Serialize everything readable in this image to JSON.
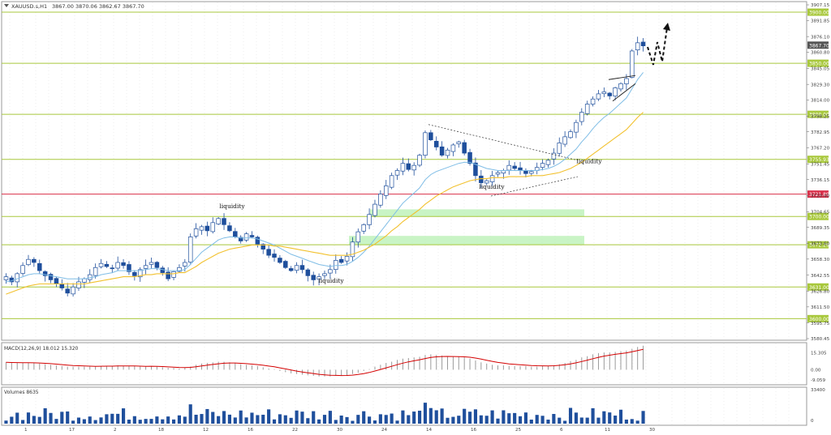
{
  "header": {
    "symbol": "XAUUSD.s,H1",
    "ohlc": "3867.00 3870.06 3862.67 3867.70"
  },
  "chart_data": {
    "type": "candlestick",
    "symbol": "XAUUSD.s",
    "timeframe": "H1",
    "last_price": 3867.7,
    "ylim": [
      3580.45,
      3907.15
    ],
    "price_axis_ticks": [
      3907.15,
      3891.85,
      3876.1,
      3860.8,
      3845.05,
      3829.3,
      3814.0,
      3798.25,
      3782.95,
      3767.2,
      3751.45,
      3736.15,
      3720.4,
      3704.65,
      3689.35,
      3673.6,
      3658.3,
      3642.55,
      3626.8,
      3611.5,
      3595.75,
      3580.45
    ],
    "horizontal_levels": [
      {
        "price": 3900.0,
        "label": "3900.00",
        "color": "#a8c83c"
      },
      {
        "price": 3850.0,
        "label": "3850.00",
        "color": "#a8c83c"
      },
      {
        "price": 3800.0,
        "label": "3800.00",
        "color": "#a8c83c"
      },
      {
        "price": 3755.93,
        "label": "3755.93",
        "color": "#a8c83c"
      },
      {
        "price": 3721.89,
        "label": "3721.89",
        "color": "#d9304a"
      },
      {
        "price": 3700.0,
        "label": "3700.00",
        "color": "#a8c83c"
      },
      {
        "price": 3672.29,
        "label": "3672.29",
        "color": "#a8c83c"
      },
      {
        "price": 3631.0,
        "label": "3631.00",
        "color": "#a8c83c"
      },
      {
        "price": 3600.0,
        "label": "3600.00",
        "color": "#a8c83c"
      }
    ],
    "price_path": [
      3641,
      3636,
      3644,
      3652,
      3658,
      3655,
      3647,
      3642,
      3638,
      3634,
      3630,
      3625,
      3631,
      3636,
      3639,
      3643,
      3650,
      3654,
      3651,
      3649,
      3655,
      3652,
      3646,
      3642,
      3648,
      3652,
      3655,
      3650,
      3645,
      3639,
      3646,
      3650,
      3655,
      3680,
      3688,
      3690,
      3686,
      3694,
      3698,
      3692,
      3686,
      3680,
      3676,
      3683,
      3680,
      3673,
      3668,
      3662,
      3660,
      3655,
      3650,
      3647,
      3652,
      3648,
      3642,
      3638,
      3641,
      3644,
      3648,
      3657,
      3655,
      3661,
      3675,
      3685,
      3692,
      3702,
      3712,
      3722,
      3730,
      3740,
      3745,
      3752,
      3746,
      3750,
      3760,
      3782,
      3775,
      3768,
      3760,
      3765,
      3770,
      3773,
      3762,
      3752,
      3740,
      3733,
      3735,
      3740,
      3743,
      3745,
      3750,
      3747,
      3745,
      3742,
      3744,
      3748,
      3752,
      3755,
      3762,
      3772,
      3778,
      3783,
      3792,
      3802,
      3810,
      3815,
      3820,
      3822,
      3818,
      3826,
      3830,
      3835,
      3862,
      3870,
      3867
    ],
    "ema_fast": [
      3636,
      3637,
      3639,
      3641,
      3643,
      3644,
      3644,
      3643,
      3642,
      3641,
      3640,
      3639,
      3639,
      3639,
      3639,
      3640,
      3641,
      3643,
      3644,
      3645,
      3647,
      3647,
      3647,
      3647,
      3647,
      3648,
      3649,
      3649,
      3648,
      3647,
      3647,
      3647,
      3648,
      3653,
      3659,
      3665,
      3669,
      3673,
      3677,
      3679,
      3680,
      3680,
      3679,
      3679,
      3679,
      3678,
      3676,
      3674,
      3672,
      3669,
      3666,
      3663,
      3661,
      3659,
      3657,
      3655,
      3653,
      3652,
      3651,
      3652,
      3652,
      3653,
      3656,
      3660,
      3665,
      3671,
      3678,
      3685,
      3692,
      3699,
      3706,
      3713,
      3718,
      3723,
      3728,
      3736,
      3741,
      3744,
      3746,
      3748,
      3750,
      3752,
      3753,
      3753,
      3751,
      3749,
      3747,
      3746,
      3745,
      3745,
      3745,
      3745,
      3745,
      3745,
      3745,
      3745,
      3746,
      3747,
      3749,
      3752,
      3756,
      3761,
      3766,
      3773,
      3779,
      3786,
      3792,
      3797,
      3801,
      3806,
      3811,
      3816,
      3825,
      3834,
      3841
    ],
    "ema_slow": [
      3624,
      3626,
      3628,
      3630,
      3632,
      3633,
      3634,
      3634,
      3634,
      3634,
      3634,
      3634,
      3634,
      3634,
      3634,
      3635,
      3636,
      3637,
      3638,
      3639,
      3640,
      3641,
      3641,
      3641,
      3642,
      3643,
      3643,
      3644,
      3644,
      3644,
      3644,
      3645,
      3645,
      3648,
      3651,
      3655,
      3658,
      3661,
      3664,
      3666,
      3668,
      3669,
      3670,
      3671,
      3672,
      3672,
      3672,
      3672,
      3671,
      3671,
      3670,
      3669,
      3668,
      3667,
      3666,
      3665,
      3664,
      3663,
      3662,
      3662,
      3662,
      3662,
      3663,
      3665,
      3667,
      3670,
      3673,
      3677,
      3681,
      3686,
      3690,
      3695,
      3699,
      3703,
      3707,
      3712,
      3716,
      3720,
      3723,
      3726,
      3729,
      3731,
      3733,
      3735,
      3736,
      3737,
      3737,
      3738,
      3738,
      3738,
      3739,
      3739,
      3739,
      3739,
      3740,
      3740,
      3740,
      3741,
      3742,
      3743,
      3745,
      3747,
      3750,
      3753,
      3757,
      3761,
      3765,
      3769,
      3773,
      3777,
      3781,
      3785,
      3791,
      3797,
      3802
    ],
    "zones": [
      {
        "from": 3700,
        "to": 3707,
        "label": ""
      },
      {
        "from": 3672,
        "to": 3681,
        "label": ""
      }
    ],
    "annotations": [
      {
        "text": "liquidity",
        "price": 3708,
        "bar": 38
      },
      {
        "text": "liquidity",
        "price": 3635,
        "bar": 54
      },
      {
        "text": "liquidity",
        "price": 3727,
        "bar": 87
      },
      {
        "text": "liquidity",
        "price": 3752,
        "bar": 102
      }
    ],
    "macd": {
      "label": "MACD(12,26,9) 18.012 15.320",
      "ticks": [
        "15.305",
        "0.00",
        "-9.059"
      ],
      "ylim": [
        -12,
        22
      ],
      "signal_color": "#d40000",
      "histogram_color": "#9a9a9a"
    },
    "volumes": {
      "label": "Volumes 8635",
      "ticks": [
        "33400",
        "0"
      ],
      "ylim": [
        0,
        36000
      ],
      "color": "#1f4f9c"
    },
    "time_labels": [
      "1",
      "17",
      "2",
      "18",
      "12",
      "16",
      "22",
      "30",
      "24",
      "14",
      "16",
      "25",
      "6",
      "11",
      "30"
    ]
  }
}
